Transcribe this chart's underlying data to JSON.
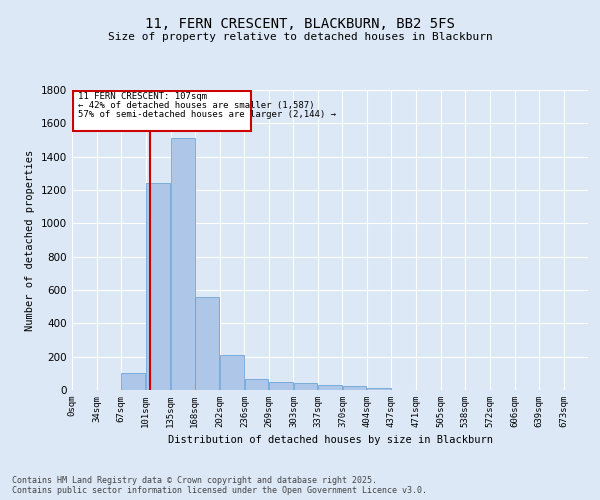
{
  "title_line1": "11, FERN CRESCENT, BLACKBURN, BB2 5FS",
  "title_line2": "Size of property relative to detached houses in Blackburn",
  "xlabel": "Distribution of detached houses by size in Blackburn",
  "ylabel": "Number of detached properties",
  "categories": [
    "0sqm",
    "34sqm",
    "67sqm",
    "101sqm",
    "135sqm",
    "168sqm",
    "202sqm",
    "236sqm",
    "269sqm",
    "303sqm",
    "337sqm",
    "370sqm",
    "404sqm",
    "437sqm",
    "471sqm",
    "505sqm",
    "538sqm",
    "572sqm",
    "606sqm",
    "639sqm",
    "673sqm"
  ],
  "values": [
    0,
    0,
    100,
    1240,
    1510,
    560,
    210,
    65,
    50,
    40,
    30,
    25,
    10,
    3,
    0,
    0,
    0,
    0,
    0,
    0,
    0
  ],
  "bar_color": "#aec6e8",
  "bar_edge_color": "#5b9bd5",
  "background_color": "#dce8f5",
  "grid_color": "#ffffff",
  "vline_color": "#cc0000",
  "annotation_line1": "11 FERN CRESCENT: 107sqm",
  "annotation_line2": "← 42% of detached houses are smaller (1,587)",
  "annotation_line3": "57% of semi-detached houses are larger (2,144) →",
  "annotation_box_color": "#cc0000",
  "ylim": [
    0,
    1800
  ],
  "yticks": [
    0,
    200,
    400,
    600,
    800,
    1000,
    1200,
    1400,
    1600,
    1800
  ],
  "footnote_line1": "Contains HM Land Registry data © Crown copyright and database right 2025.",
  "footnote_line2": "Contains public sector information licensed under the Open Government Licence v3.0.",
  "bin_edges": [
    0,
    34,
    67,
    101,
    135,
    168,
    202,
    236,
    269,
    303,
    337,
    370,
    404,
    437,
    471,
    505,
    538,
    572,
    606,
    639,
    673,
    706
  ],
  "bin_width": 33,
  "vline_x": 107
}
